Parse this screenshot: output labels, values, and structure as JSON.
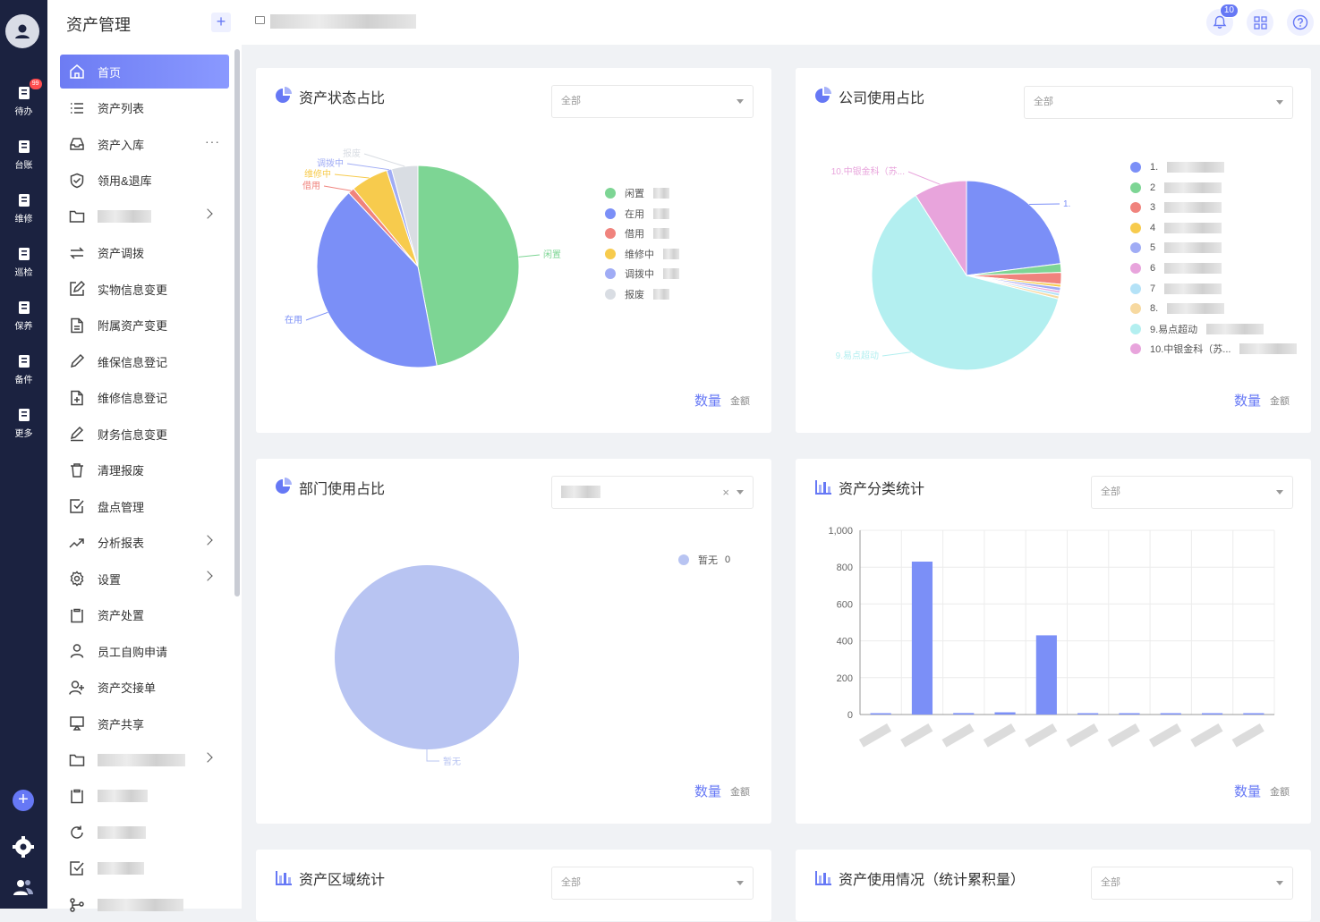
{
  "rail": {
    "items": [
      {
        "label": "待办",
        "icon": "todo-icon",
        "badge": "99"
      },
      {
        "label": "台账",
        "icon": "ledger-icon"
      },
      {
        "label": "维修",
        "icon": "repair-icon"
      },
      {
        "label": "巡检",
        "icon": "inspection-icon"
      },
      {
        "label": "保养",
        "icon": "maintenance-icon"
      },
      {
        "label": "备件",
        "icon": "spare-parts-icon"
      },
      {
        "label": "更多",
        "icon": "more-grid-icon"
      }
    ]
  },
  "sidebar": {
    "title": "资产管理",
    "items": [
      {
        "label": "首页",
        "icon": "home-icon",
        "active": true
      },
      {
        "label": "资产列表",
        "icon": "list-icon"
      },
      {
        "label": "资产入库",
        "icon": "inbox-icon",
        "more": "···"
      },
      {
        "label": "领用&退库",
        "icon": "shield-check-icon"
      },
      {
        "label": "",
        "icon": "folder-icon",
        "arrow": true,
        "blurred": true
      },
      {
        "label": "资产调拨",
        "icon": "transfer-icon"
      },
      {
        "label": "实物信息变更",
        "icon": "edit-icon"
      },
      {
        "label": "附属资产变更",
        "icon": "file-icon"
      },
      {
        "label": "维保信息登记",
        "icon": "pen-icon"
      },
      {
        "label": "维修信息登记",
        "icon": "file-plus-icon"
      },
      {
        "label": "财务信息变更",
        "icon": "pen-line-icon"
      },
      {
        "label": "清理报废",
        "icon": "trash-icon"
      },
      {
        "label": "盘点管理",
        "icon": "check-square-icon"
      },
      {
        "label": "分析报表",
        "icon": "trend-icon",
        "arrow": true
      },
      {
        "label": "设置",
        "icon": "settings-icon",
        "arrow": true
      },
      {
        "label": "资产处置",
        "icon": "clipboard-icon"
      },
      {
        "label": "员工自购申请",
        "icon": "user-icon"
      },
      {
        "label": "资产交接单",
        "icon": "user-plus-icon"
      },
      {
        "label": "资产共享",
        "icon": "share-screen-icon"
      },
      {
        "label": "",
        "icon": "folder-icon",
        "arrow": true,
        "blurred": true
      },
      {
        "label": "",
        "icon": "clipboard-icon",
        "blurred": true
      },
      {
        "label": "",
        "icon": "refresh-icon",
        "blurred": true
      },
      {
        "label": "",
        "icon": "check-square-icon",
        "blurred": true
      },
      {
        "label": "",
        "icon": "branch-icon",
        "blurred": true
      }
    ]
  },
  "topbar": {
    "notification_count": "10"
  },
  "cards": {
    "status": {
      "title": "资产状态占比",
      "select": "全部",
      "metric_primary": "数量",
      "metric_secondary": "金额"
    },
    "company": {
      "title": "公司使用占比",
      "select": "全部",
      "metric_primary": "数量",
      "metric_secondary": "金额"
    },
    "department": {
      "title": "部门使用占比",
      "select": "",
      "clear": "×",
      "metric_primary": "数量",
      "metric_secondary": "金额"
    },
    "category": {
      "title": "资产分类统计",
      "select": "全部",
      "metric_primary": "数量",
      "metric_secondary": "金额"
    },
    "region": {
      "title": "资产区域统计",
      "select": "全部"
    },
    "usage": {
      "title": "资产使用情况（统计累积量）",
      "select": "全部"
    }
  },
  "chart_data": [
    {
      "type": "pie",
      "title": "资产状态占比",
      "categories": [
        "闲置",
        "在用",
        "借用",
        "维修中",
        "调拨中",
        "报废"
      ],
      "values": [
        47,
        41,
        1,
        6,
        0.8,
        4.2
      ],
      "colors": [
        "#7dd594",
        "#7b8ff7",
        "#f0837d",
        "#f7cb4d",
        "#a0acf5",
        "#d9dde3"
      ],
      "legend": "right"
    },
    {
      "type": "pie",
      "title": "公司使用占比",
      "categories": [
        "1.",
        "2",
        "3",
        "4",
        "5",
        "6",
        "7",
        "8.",
        "9.易点超动",
        "10.中银金科（苏..."
      ],
      "values": [
        23,
        1.5,
        2,
        0.5,
        0.6,
        0.4,
        0.5,
        0.5,
        62,
        9
      ],
      "colors": [
        "#7b8ff7",
        "#7dd594",
        "#f0837d",
        "#f7cb4d",
        "#a0acf5",
        "#e8a4dc",
        "#b4e2f7",
        "#f7d9a0",
        "#b3eff0",
        "#e8a4dc"
      ],
      "legend": "right"
    },
    {
      "type": "pie",
      "title": "部门使用占比",
      "categories": [
        "暂无"
      ],
      "values": [
        0
      ],
      "colors": [
        "#b8c4f2"
      ],
      "legend": "top-right"
    },
    {
      "type": "bar",
      "title": "资产分类统计",
      "values": [
        3,
        830,
        8,
        12,
        430,
        2,
        2,
        2,
        2,
        6
      ],
      "ylim": [
        0,
        1000
      ],
      "yticks": [
        0,
        200,
        400,
        600,
        800,
        1000
      ],
      "ytick_labels": [
        "0",
        "200",
        "400",
        "600",
        "800",
        "1,000"
      ],
      "colors": [
        "#7b8ff7"
      ],
      "grid": true
    }
  ]
}
